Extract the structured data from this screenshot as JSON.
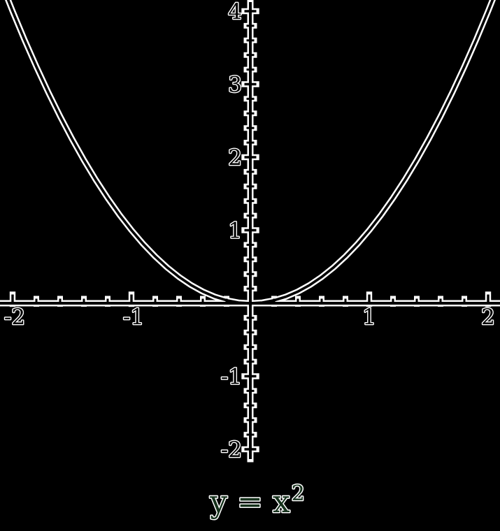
{
  "page": {
    "background_color": "#000000",
    "stroke_outline_color": "#ffffff",
    "stroke_core_color": "#000000",
    "label_fill_color": "#000000"
  },
  "title": {
    "text": "y = x",
    "superscript": "2",
    "fill": "#16321c"
  },
  "chart_data": {
    "type": "line",
    "title": "y = x^2",
    "equation": "y = x^2",
    "xlabel": "",
    "ylabel": "",
    "xlim": [
      -2.1,
      2.1
    ],
    "ylim": [
      -2.3,
      4.15
    ],
    "grid": false,
    "legend": false,
    "axes_cross_at": [
      0,
      0
    ],
    "x_ticks_major": [
      -2,
      -1,
      1,
      2
    ],
    "x_tick_labels": [
      "-2",
      "-1",
      "1",
      "2"
    ],
    "y_ticks_major": [
      -2,
      -1,
      1,
      2,
      3,
      4
    ],
    "y_tick_labels": [
      "-2",
      "-1",
      "1",
      "2",
      "3",
      "4"
    ],
    "minor_tick_step": 0.2,
    "x_minor_range": [
      -2,
      2
    ],
    "y_minor_range": [
      -2,
      4
    ],
    "x": [
      -2.1,
      -2.0,
      -1.9,
      -1.8,
      -1.7,
      -1.6,
      -1.5,
      -1.4,
      -1.3,
      -1.2,
      -1.1,
      -1.0,
      -0.9,
      -0.8,
      -0.7,
      -0.6,
      -0.5,
      -0.4,
      -0.3,
      -0.2,
      -0.1,
      0.0,
      0.1,
      0.2,
      0.3,
      0.4,
      0.5,
      0.6,
      0.7,
      0.8,
      0.9,
      1.0,
      1.1,
      1.2,
      1.3,
      1.4,
      1.5,
      1.6,
      1.7,
      1.8,
      1.9,
      2.0,
      2.1
    ],
    "y": [
      4.41,
      4.0,
      3.61,
      3.24,
      2.89,
      2.56,
      2.25,
      1.96,
      1.69,
      1.44,
      1.21,
      1.0,
      0.81,
      0.64,
      0.49,
      0.36,
      0.25,
      0.16,
      0.09,
      0.04,
      0.01,
      0.0,
      0.01,
      0.04,
      0.09,
      0.16,
      0.25,
      0.36,
      0.49,
      0.64,
      0.81,
      1.0,
      1.21,
      1.44,
      1.69,
      1.96,
      2.25,
      2.56,
      2.89,
      3.24,
      3.61,
      4.0,
      4.41
    ]
  }
}
